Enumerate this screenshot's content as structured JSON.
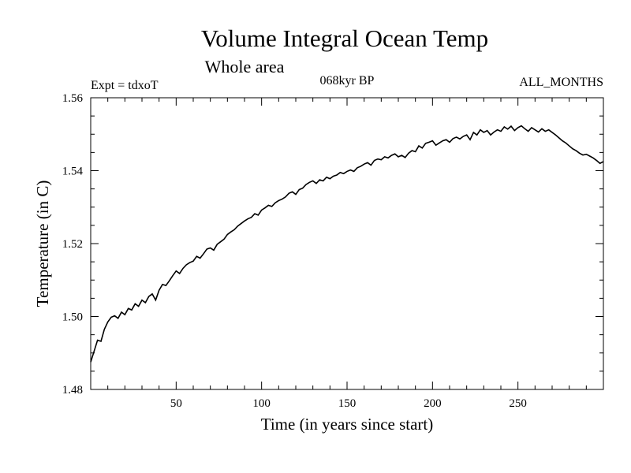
{
  "chart_data": {
    "type": "line",
    "title": "Volume Integral Ocean Temp",
    "subtitle": "Whole area",
    "experiment": "Expt = tdxoT",
    "period": "068kyr BP",
    "months": "ALL_MONTHS",
    "xlabel": "Time (in years since start)",
    "ylabel": "Temperature (in C)",
    "xlim": [
      0,
      300
    ],
    "ylim": [
      1.48,
      1.56
    ],
    "x_ticks": [
      50,
      100,
      150,
      200,
      250
    ],
    "x_tick_labels": [
      "50",
      "100",
      "150",
      "200",
      "250"
    ],
    "y_ticks": [
      1.48,
      1.5,
      1.52,
      1.54,
      1.56
    ],
    "y_tick_labels": [
      "1.48",
      "1.50",
      "1.52",
      "1.54",
      "1.56"
    ],
    "grid": false,
    "line_color": "#000000",
    "series": [
      {
        "x": [
          0,
          2,
          4,
          6,
          8,
          10,
          12,
          14,
          16,
          18,
          20,
          22,
          24,
          26,
          28,
          30,
          32,
          34,
          36,
          38,
          40,
          42,
          44,
          46,
          48,
          50,
          52,
          54,
          56,
          58,
          60,
          62,
          64,
          66,
          68,
          70,
          72,
          74,
          76,
          78,
          80,
          82,
          84,
          86,
          88,
          90,
          92,
          94,
          96,
          98,
          100,
          102,
          104,
          106,
          108,
          110,
          112,
          114,
          116,
          118,
          120,
          122,
          124,
          126,
          128,
          130,
          132,
          134,
          136,
          138,
          140,
          142,
          144,
          146,
          148,
          150,
          152,
          154,
          156,
          158,
          160,
          162,
          164,
          166,
          168,
          170,
          172,
          174,
          176,
          178,
          180,
          182,
          184,
          186,
          188,
          190,
          192,
          194,
          196,
          198,
          200,
          202,
          204,
          206,
          208,
          210,
          212,
          214,
          216,
          218,
          220,
          222,
          224,
          226,
          228,
          230,
          232,
          234,
          236,
          238,
          240,
          242,
          244,
          246,
          248,
          250,
          252,
          254,
          256,
          258,
          260,
          262,
          264,
          266,
          268,
          270,
          272,
          274,
          276,
          278,
          280,
          282,
          284,
          286,
          288,
          290,
          292,
          294,
          296,
          298,
          300
        ],
        "values": [
          1.4875,
          1.4905,
          1.4935,
          1.4932,
          1.4965,
          1.4985,
          1.4998,
          1.5002,
          1.4995,
          1.5012,
          1.5005,
          1.5022,
          1.5018,
          1.5035,
          1.5028,
          1.5045,
          1.5038,
          1.5055,
          1.5062,
          1.5045,
          1.5072,
          1.5088,
          1.5085,
          1.5098,
          1.5112,
          1.5125,
          1.5118,
          1.5132,
          1.5142,
          1.5148,
          1.5152,
          1.5165,
          1.516,
          1.5172,
          1.5185,
          1.5188,
          1.5182,
          1.5198,
          1.5205,
          1.5212,
          1.5225,
          1.5232,
          1.5238,
          1.5248,
          1.5255,
          1.5262,
          1.5268,
          1.5272,
          1.5282,
          1.5278,
          1.5292,
          1.5298,
          1.5305,
          1.5302,
          1.5312,
          1.5318,
          1.5322,
          1.5328,
          1.5338,
          1.5342,
          1.5335,
          1.5348,
          1.5352,
          1.5362,
          1.5368,
          1.5372,
          1.5365,
          1.5375,
          1.5372,
          1.5382,
          1.5378,
          1.5385,
          1.5388,
          1.5395,
          1.5392,
          1.5398,
          1.5402,
          1.5398,
          1.5408,
          1.5412,
          1.5418,
          1.5422,
          1.5415,
          1.5428,
          1.5432,
          1.543,
          1.5438,
          1.5435,
          1.5442,
          1.5446,
          1.5438,
          1.5442,
          1.5436,
          1.5448,
          1.5455,
          1.5452,
          1.5468,
          1.5462,
          1.5475,
          1.5478,
          1.5482,
          1.547,
          1.5476,
          1.5482,
          1.5485,
          1.5478,
          1.5488,
          1.5492,
          1.5487,
          1.5494,
          1.5498,
          1.5485,
          1.5505,
          1.5498,
          1.5512,
          1.5505,
          1.551,
          1.5498,
          1.5506,
          1.5512,
          1.5508,
          1.552,
          1.5514,
          1.5522,
          1.551,
          1.5518,
          1.5523,
          1.5515,
          1.5508,
          1.5518,
          1.5512,
          1.5506,
          1.5515,
          1.5508,
          1.5512,
          1.5505,
          1.5498,
          1.549,
          1.5482,
          1.5476,
          1.5468,
          1.546,
          1.5455,
          1.5448,
          1.5443,
          1.5445,
          1.544,
          1.5435,
          1.5428,
          1.542,
          1.5425
        ]
      }
    ]
  }
}
